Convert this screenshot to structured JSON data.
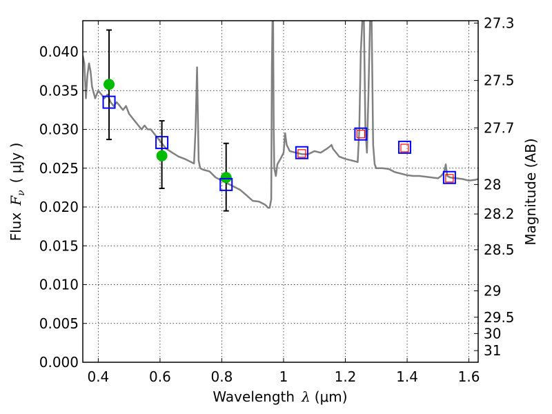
{
  "chart_data": {
    "type": "scatter",
    "xlabel": {
      "text": "Wavelength",
      "symbol": "λ",
      "unit": "(μm)"
    },
    "ylabel": {
      "text": "Flux",
      "symbol": "F",
      "sub": "ν",
      "unit": "( μJy )"
    },
    "y2label": "Magnitude (AB)",
    "xlim": [
      0.35,
      1.63
    ],
    "ylim": [
      0.0,
      0.044
    ],
    "grid": true,
    "x_ticks": [
      0.4,
      0.6,
      0.8,
      1.0,
      1.2,
      1.4,
      1.6
    ],
    "x_tick_labels": [
      "0.4",
      "0.6",
      "0.8",
      "1",
      "1.2",
      "1.4",
      "1.6"
    ],
    "y_ticks": [
      0.0,
      0.005,
      0.01,
      0.015,
      0.02,
      0.025,
      0.03,
      0.035,
      0.04
    ],
    "y_tick_labels": [
      "0.000",
      "0.005",
      "0.010",
      "0.015",
      "0.020",
      "0.025",
      "0.030",
      "0.035",
      "0.040"
    ],
    "y2_ticks": [
      {
        "label": "27.3",
        "flux": 0.0437
      },
      {
        "label": "27.5",
        "flux": 0.0363
      },
      {
        "label": "27.7",
        "flux": 0.0302
      },
      {
        "label": "28",
        "flux": 0.0229
      },
      {
        "label": "28.2",
        "flux": 0.0191
      },
      {
        "label": "28.5",
        "flux": 0.0145
      },
      {
        "label": "29",
        "flux": 0.0092
      },
      {
        "label": "29.5",
        "flux": 0.0058
      },
      {
        "label": "30",
        "flux": 0.0037
      },
      {
        "label": "31",
        "flux": 0.0015
      }
    ],
    "series": [
      {
        "name": "model spectrum",
        "style": "line",
        "color": "#808080",
        "x": [
          0.35,
          0.355,
          0.36,
          0.365,
          0.37,
          0.375,
          0.38,
          0.39,
          0.4,
          0.41,
          0.42,
          0.43,
          0.44,
          0.45,
          0.46,
          0.47,
          0.48,
          0.49,
          0.5,
          0.51,
          0.52,
          0.53,
          0.54,
          0.55,
          0.56,
          0.57,
          0.58,
          0.6,
          0.62,
          0.64,
          0.66,
          0.68,
          0.7,
          0.71,
          0.715,
          0.72,
          0.725,
          0.73,
          0.74,
          0.76,
          0.78,
          0.8,
          0.82,
          0.84,
          0.86,
          0.88,
          0.9,
          0.92,
          0.94,
          0.95,
          0.955,
          0.96,
          0.962,
          0.964,
          0.966,
          0.968,
          0.97,
          0.975,
          0.98,
          0.99,
          1.0,
          1.005,
          1.01,
          1.02,
          1.04,
          1.06,
          1.08,
          1.1,
          1.12,
          1.14,
          1.15,
          1.155,
          1.16,
          1.18,
          1.2,
          1.22,
          1.24,
          1.245,
          1.25,
          1.255,
          1.26,
          1.265,
          1.27,
          1.275,
          1.28,
          1.285,
          1.29,
          1.295,
          1.3,
          1.32,
          1.34,
          1.36,
          1.38,
          1.4,
          1.42,
          1.44,
          1.46,
          1.48,
          1.5,
          1.51,
          1.52,
          1.525,
          1.53,
          1.54,
          1.56,
          1.58,
          1.6,
          1.62,
          1.63
        ],
        "y": [
          0.0395,
          0.0385,
          0.034,
          0.037,
          0.0385,
          0.0375,
          0.0355,
          0.034,
          0.035,
          0.0345,
          0.034,
          0.0345,
          0.0335,
          0.033,
          0.0335,
          0.033,
          0.0325,
          0.033,
          0.032,
          0.0315,
          0.031,
          0.0305,
          0.03,
          0.0305,
          0.03,
          0.03,
          0.0295,
          0.0285,
          0.0275,
          0.027,
          0.0265,
          0.0262,
          0.0258,
          0.0256,
          0.03,
          0.038,
          0.026,
          0.025,
          0.0248,
          0.0246,
          0.0238,
          0.0234,
          0.023,
          0.0226,
          0.0222,
          0.0215,
          0.0208,
          0.0207,
          0.0203,
          0.0199,
          0.0199,
          0.021,
          0.038,
          0.044,
          0.044,
          0.03,
          0.025,
          0.024,
          0.0255,
          0.0262,
          0.027,
          0.0295,
          0.028,
          0.0272,
          0.027,
          0.0268,
          0.0268,
          0.0272,
          0.027,
          0.0275,
          0.0278,
          0.028,
          0.0275,
          0.0265,
          0.0262,
          0.026,
          0.0258,
          0.03,
          0.04,
          0.044,
          0.044,
          0.03,
          0.027,
          0.035,
          0.044,
          0.044,
          0.028,
          0.0255,
          0.025,
          0.025,
          0.0249,
          0.0245,
          0.0243,
          0.0241,
          0.024,
          0.024,
          0.0239,
          0.0238,
          0.0237,
          0.024,
          0.0245,
          0.0255,
          0.024,
          0.0238,
          0.0237,
          0.0236,
          0.0234,
          0.0235,
          0.0236
        ]
      },
      {
        "name": "observed photometry",
        "style": "points",
        "color": "#00bb00",
        "x": [
          0.435,
          0.606,
          0.814
        ],
        "y": [
          0.0358,
          0.0266,
          0.0238
        ],
        "yerr_low": [
          0.0287,
          0.0224,
          0.0195
        ],
        "yerr_high": [
          0.0428,
          0.0311,
          0.0282
        ]
      },
      {
        "name": "model photometry",
        "style": "open-squares",
        "color": "#0000ff",
        "x": [
          0.435,
          0.606,
          0.814,
          1.059,
          1.25,
          1.392,
          1.537
        ],
        "y": [
          0.0335,
          0.0283,
          0.0229,
          0.027,
          0.0294,
          0.0277,
          0.0238
        ]
      },
      {
        "name": "predicted photometry",
        "style": "small-open-squares",
        "color": "#ff0000",
        "x": [
          1.059,
          1.25,
          1.392,
          1.537
        ],
        "y": [
          0.0269,
          0.0294,
          0.0276,
          0.0237
        ]
      }
    ]
  }
}
